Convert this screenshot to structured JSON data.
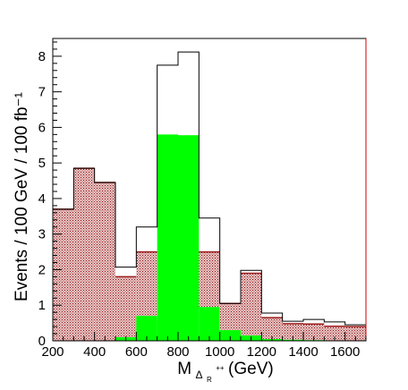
{
  "chart_data": {
    "type": "bar",
    "subtype": "stacked-histogram",
    "title": "",
    "ylabel": "Events / 100 GeV / 100 fb⁻¹",
    "xlabel": {
      "main": "M",
      "subscript": "Δ",
      "subsubscript": "R",
      "superscript": "++",
      "unit": "(GeV)"
    },
    "xlim": [
      200,
      1700
    ],
    "ylim": [
      0,
      8.5
    ],
    "xticks": [
      200,
      400,
      600,
      800,
      1000,
      1200,
      1400,
      1600
    ],
    "yticks": [
      0,
      1,
      2,
      3,
      4,
      5,
      6,
      7,
      8
    ],
    "bin_edges": [
      200,
      300,
      400,
      500,
      600,
      700,
      800,
      900,
      1000,
      1100,
      1200,
      1300,
      1400,
      1500,
      1600,
      1700
    ],
    "series": [
      {
        "name": "",
        "style": "green-filled",
        "color": "#00ff00",
        "values": [
          0.0,
          0.0,
          0.0,
          0.1,
          0.7,
          5.8,
          5.78,
          0.95,
          0.3,
          0.15,
          0.05,
          0.03,
          0.02,
          0.01,
          0.0
        ]
      },
      {
        "name": "",
        "style": "red-hatched",
        "color": "#9b1c1c",
        "values": [
          3.7,
          4.85,
          4.45,
          1.7,
          1.8,
          0.0,
          0.0,
          1.55,
          0.75,
          1.75,
          0.6,
          0.45,
          0.45,
          0.4,
          0.4
        ]
      },
      {
        "name": "",
        "style": "black-outline-total",
        "color": "#000000",
        "values": [
          3.7,
          4.85,
          4.45,
          2.07,
          3.2,
          7.75,
          8.12,
          3.45,
          1.05,
          1.98,
          0.78,
          0.55,
          0.6,
          0.53,
          0.45
        ]
      }
    ],
    "grid": false,
    "legend": "none"
  }
}
